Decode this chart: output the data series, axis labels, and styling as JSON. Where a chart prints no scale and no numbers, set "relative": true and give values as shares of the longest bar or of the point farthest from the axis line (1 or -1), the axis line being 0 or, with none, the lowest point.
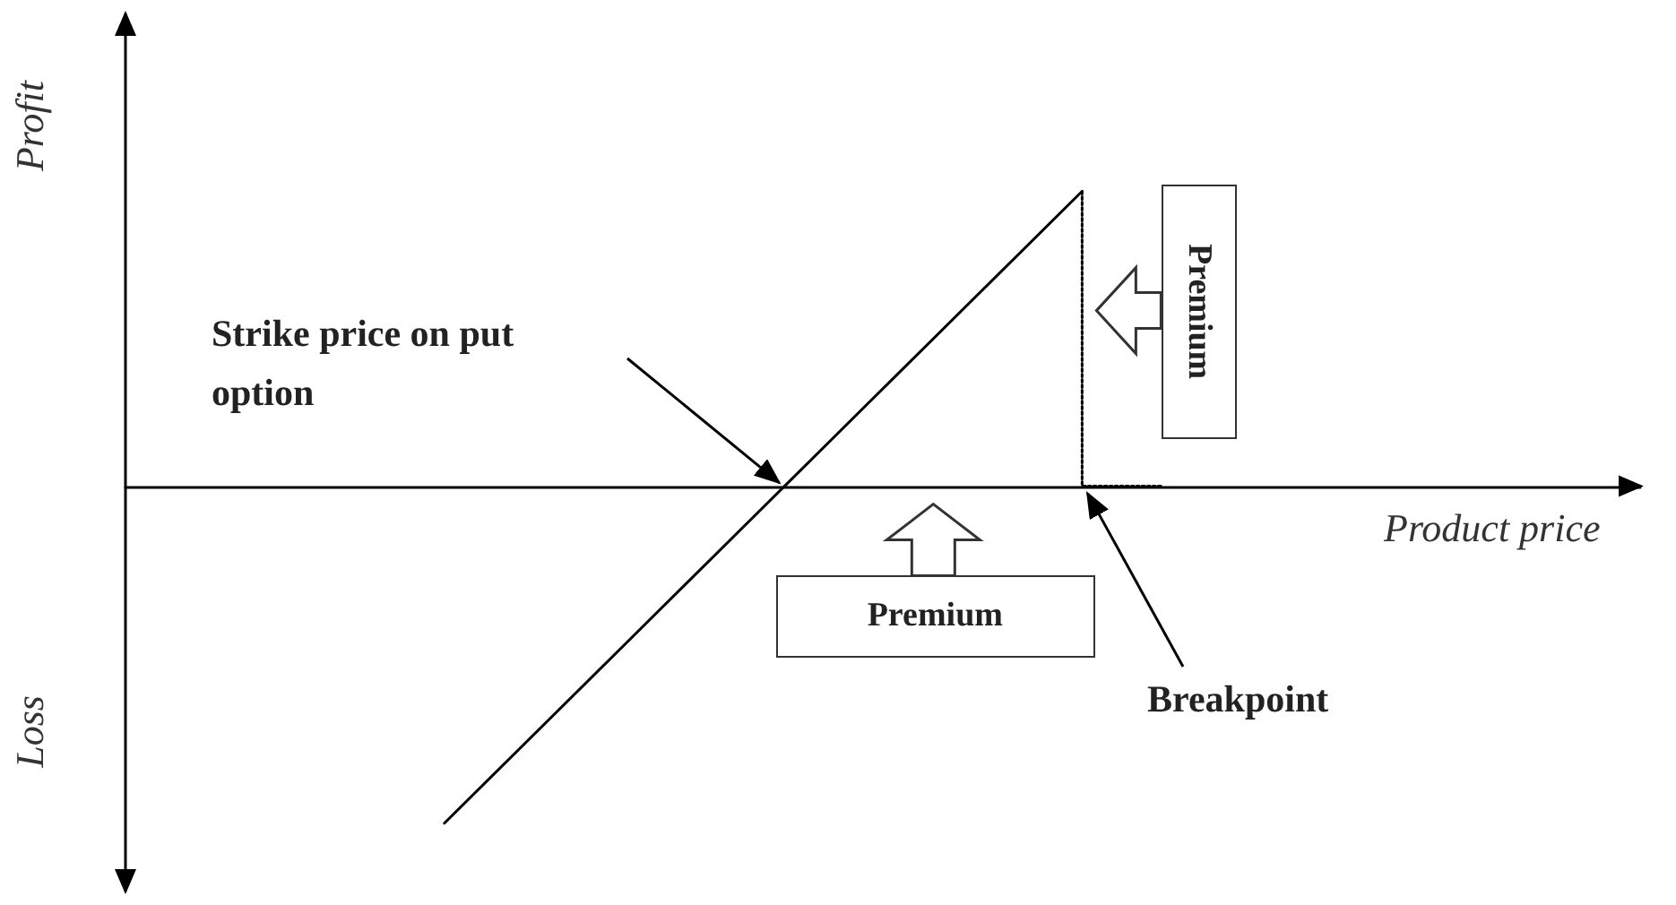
{
  "chart_data": {
    "type": "line",
    "relative": true,
    "xlabel": "Product price",
    "ylabel": "Profit",
    "categories": [
      null,
      null,
      null,
      null,
      null,
      null,
      null,
      null,
      null,
      null,
      null,
      null,
      null,
      null,
      null,
      null,
      null,
      null,
      null,
      null
    ],
    "series": [
      {
        "color": "#000000",
        "values": [
          null,
          null,
          null,
          null,
          -1,
          null,
          null,
          null,
          null,
          null,
          null,
          null,
          0.875,
          null,
          null,
          null,
          null,
          null,
          null,
          null
        ]
      },
      {
        "color": "#000000",
        "type": "step",
        "line_style": "dotted",
        "values": [
          null,
          null,
          null,
          null,
          null,
          null,
          null,
          null,
          null,
          null,
          null,
          null,
          0.875,
          0,
          null,
          null,
          null,
          null,
          null,
          null
        ]
      }
    ],
    "annotations": [
      "Strike price on put option",
      "Breakpoint",
      "Premium",
      "Premium",
      "Loss"
    ]
  }
}
